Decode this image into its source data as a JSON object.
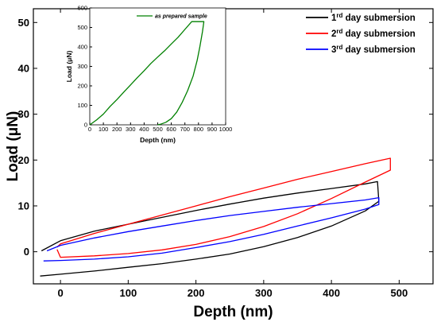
{
  "chart_data": [
    {
      "type": "line",
      "title": "",
      "xlabel": "Depth (nm)",
      "ylabel": "Load (μN)",
      "xlim": [
        -40,
        550
      ],
      "ylim": [
        -7,
        53
      ],
      "xticks": [
        0,
        100,
        200,
        300,
        400,
        500
      ],
      "yticks": [
        0,
        10,
        20,
        30,
        40,
        50
      ],
      "grid": false,
      "legend_position": "top-right",
      "series": [
        {
          "name": "1rd day submersion",
          "legend_base": "1",
          "legend_sup": "rd",
          "legend_rest": " day submersion",
          "color": "#000000",
          "loading": {
            "x": [
              -28,
              0,
              50,
              100,
              150,
              200,
              250,
              300,
              350,
              400,
              450,
              468
            ],
            "y": [
              0.2,
              2.4,
              4.5,
              6.0,
              7.5,
              9.0,
              10.4,
              11.7,
              12.8,
              13.8,
              14.8,
              15.3
            ]
          },
          "unloading": {
            "x": [
              470,
              450,
              400,
              350,
              300,
              250,
              200,
              150,
              100,
              50,
              0,
              -30
            ],
            "y": [
              11.0,
              8.9,
              5.6,
              3.1,
              1.1,
              -0.5,
              -1.6,
              -2.6,
              -3.4,
              -4.2,
              -4.9,
              -5.3
            ]
          }
        },
        {
          "name": "2rd day submersion",
          "legend_base": "2",
          "legend_sup": "rd",
          "legend_rest": " day submersion",
          "color": "#ff0000",
          "loading": {
            "x": [
              -5,
              0,
              50,
              100,
              150,
              200,
              250,
              300,
              350,
              400,
              450,
              487
            ],
            "y": [
              1.0,
              1.7,
              4.0,
              6.0,
              8.0,
              10.0,
              12.0,
              13.9,
              15.8,
              17.5,
              19.2,
              20.4
            ]
          },
          "unloading": {
            "x": [
              487,
              450,
              400,
              350,
              300,
              250,
              200,
              150,
              100,
              50,
              0,
              -5
            ],
            "y": [
              17.8,
              15.2,
              11.6,
              8.3,
              5.5,
              3.3,
              1.6,
              0.4,
              -0.4,
              -0.9,
              -1.2,
              0.5
            ]
          }
        },
        {
          "name": "3rd day submersion",
          "legend_base": "3",
          "legend_sup": "rd",
          "legend_rest": " day submersion",
          "color": "#0000ff",
          "loading": {
            "x": [
              -20,
              0,
              50,
              100,
              150,
              200,
              250,
              300,
              350,
              400,
              450,
              470
            ],
            "y": [
              0.2,
              1.4,
              3.0,
              4.4,
              5.6,
              6.8,
              7.9,
              8.8,
              9.7,
              10.5,
              11.3,
              11.8
            ]
          },
          "unloading": {
            "x": [
              470,
              450,
              400,
              350,
              300,
              250,
              200,
              150,
              100,
              50,
              0,
              -25
            ],
            "y": [
              10.3,
              9.3,
              7.4,
              5.6,
              3.8,
              2.2,
              0.9,
              -0.3,
              -1.1,
              -1.6,
              -1.9,
              -2.0
            ]
          }
        }
      ]
    },
    {
      "type": "line",
      "title": "",
      "xlabel": "Depth (nm)",
      "ylabel": "Load (μN)",
      "xlim": [
        0,
        1000
      ],
      "ylim": [
        0,
        600
      ],
      "xticks": [
        0,
        100,
        200,
        300,
        400,
        500,
        600,
        700,
        800,
        900,
        1000
      ],
      "yticks": [
        0,
        100,
        200,
        300,
        400,
        500,
        600
      ],
      "grid": false,
      "legend_position": "top-right",
      "series": [
        {
          "name": "as prepared sample",
          "color": "#008000",
          "x": [
            0,
            50,
            100,
            150,
            200,
            250,
            300,
            350,
            400,
            450,
            500,
            550,
            600,
            650,
            700,
            750,
            780,
            830,
            840,
            830,
            810,
            790,
            760,
            720,
            680,
            640,
            600,
            560,
            520,
            500
          ],
          "y": [
            0,
            25,
            55,
            95,
            130,
            168,
            205,
            242,
            278,
            315,
            348,
            380,
            415,
            450,
            490,
            530,
            530,
            530,
            530,
            480,
            400,
            330,
            250,
            175,
            115,
            65,
            32,
            13,
            3,
            0
          ]
        }
      ]
    }
  ]
}
